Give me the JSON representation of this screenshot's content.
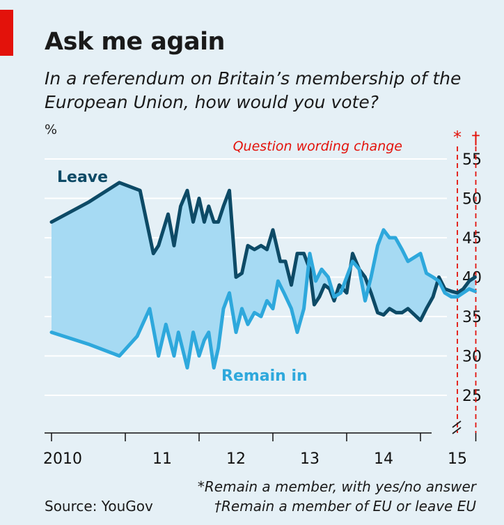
{
  "header": {
    "title": "Ask me again",
    "subtitle": "In a referendum on Britain’s membership of the European Union, how would you vote?"
  },
  "annotations": {
    "wording_change": "Question wording change",
    "star": "*",
    "dagger": "†"
  },
  "footer": {
    "source": "Source: YouGov",
    "footnote_star": "*Remain a member, with yes/no answer",
    "footnote_dagger": "†Remain a member of EU or leave EU"
  },
  "colors": {
    "background": "#e5f0f6",
    "leave": "#0d4a66",
    "remain": "#2ea8dc",
    "fill": "#a6daf3",
    "accent": "#e3120b"
  },
  "chart_data": {
    "type": "line",
    "ylabel": "%",
    "ylim": [
      20,
      55
    ],
    "yticks": [
      25,
      30,
      35,
      40,
      45,
      50,
      55
    ],
    "xlim": [
      2010,
      2016
    ],
    "xticks": [
      {
        "value": 2010,
        "label": "2010"
      },
      {
        "value": 2011,
        "label": "11"
      },
      {
        "value": 2012,
        "label": "12"
      },
      {
        "value": 2013,
        "label": "13"
      },
      {
        "value": 2014,
        "label": "14"
      },
      {
        "value": 2015,
        "label": "15"
      }
    ],
    "y_axis_break": true,
    "grid": true,
    "vlines": [
      {
        "x": 2015.5,
        "marker": "*"
      },
      {
        "x": 2015.75,
        "marker": "†"
      }
    ],
    "series": [
      {
        "name": "Leave",
        "x": [
          2010.0,
          2010.5,
          2010.92,
          2011.2,
          2011.38,
          2011.45,
          2011.58,
          2011.66,
          2011.75,
          2011.84,
          2011.92,
          2012.0,
          2012.07,
          2012.13,
          2012.2,
          2012.26,
          2012.33,
          2012.41,
          2012.5,
          2012.58,
          2012.66,
          2012.75,
          2012.84,
          2012.92,
          2013.0,
          2013.1,
          2013.17,
          2013.25,
          2013.33,
          2013.42,
          2013.5,
          2013.56,
          2013.63,
          2013.7,
          2013.77,
          2013.83,
          2013.9,
          2014.0,
          2014.08,
          2014.17,
          2014.25,
          2014.33,
          2014.42,
          2014.5,
          2014.58,
          2014.67,
          2014.75,
          2014.83,
          2015.0,
          2015.08,
          2015.17,
          2015.25,
          2015.33,
          2015.42,
          2015.5,
          2015.58,
          2015.66,
          2015.74
        ],
        "values": [
          47,
          49.5,
          52,
          51,
          43,
          44,
          48,
          44,
          49,
          51,
          47,
          50,
          47,
          49,
          47,
          47,
          49,
          51,
          40,
          40.5,
          44,
          43.5,
          44,
          43.5,
          46,
          42,
          42,
          39,
          43,
          43,
          41,
          36.5,
          37.5,
          39,
          38.5,
          37,
          39,
          38,
          43,
          41,
          40,
          38,
          35.5,
          35.2,
          36,
          35.5,
          35.5,
          36,
          34.5,
          36,
          37.5,
          40,
          38.5,
          38.2,
          38,
          38.5,
          39.5,
          40
        ]
      },
      {
        "name": "Remain in",
        "x": [
          2010.0,
          2010.5,
          2010.92,
          2011.16,
          2011.33,
          2011.45,
          2011.55,
          2011.66,
          2011.72,
          2011.84,
          2011.92,
          2012.0,
          2012.07,
          2012.13,
          2012.2,
          2012.26,
          2012.33,
          2012.41,
          2012.5,
          2012.58,
          2012.66,
          2012.75,
          2012.84,
          2012.92,
          2013.0,
          2013.07,
          2013.15,
          2013.25,
          2013.33,
          2013.42,
          2013.5,
          2013.58,
          2013.66,
          2013.75,
          2013.83,
          2013.92,
          2014.0,
          2014.08,
          2014.17,
          2014.25,
          2014.33,
          2014.42,
          2014.5,
          2014.58,
          2014.66,
          2014.75,
          2014.83,
          2015.0,
          2015.08,
          2015.17,
          2015.25,
          2015.33,
          2015.42,
          2015.5,
          2015.58,
          2015.66,
          2015.74
        ],
        "values": [
          33,
          31.5,
          30,
          32.5,
          36,
          30,
          34,
          30,
          33,
          28.5,
          33,
          30,
          32,
          33,
          28.5,
          31,
          36,
          38,
          33,
          36,
          34,
          35.5,
          35,
          37,
          36,
          39.5,
          38,
          36,
          33,
          36,
          43,
          39.5,
          41,
          40,
          37.5,
          38,
          40,
          42,
          41,
          37,
          40,
          44,
          46,
          45,
          45,
          43.5,
          42,
          43,
          40.5,
          40,
          39.5,
          38,
          37.5,
          37.5,
          38,
          38.5,
          38.2
        ]
      }
    ]
  }
}
